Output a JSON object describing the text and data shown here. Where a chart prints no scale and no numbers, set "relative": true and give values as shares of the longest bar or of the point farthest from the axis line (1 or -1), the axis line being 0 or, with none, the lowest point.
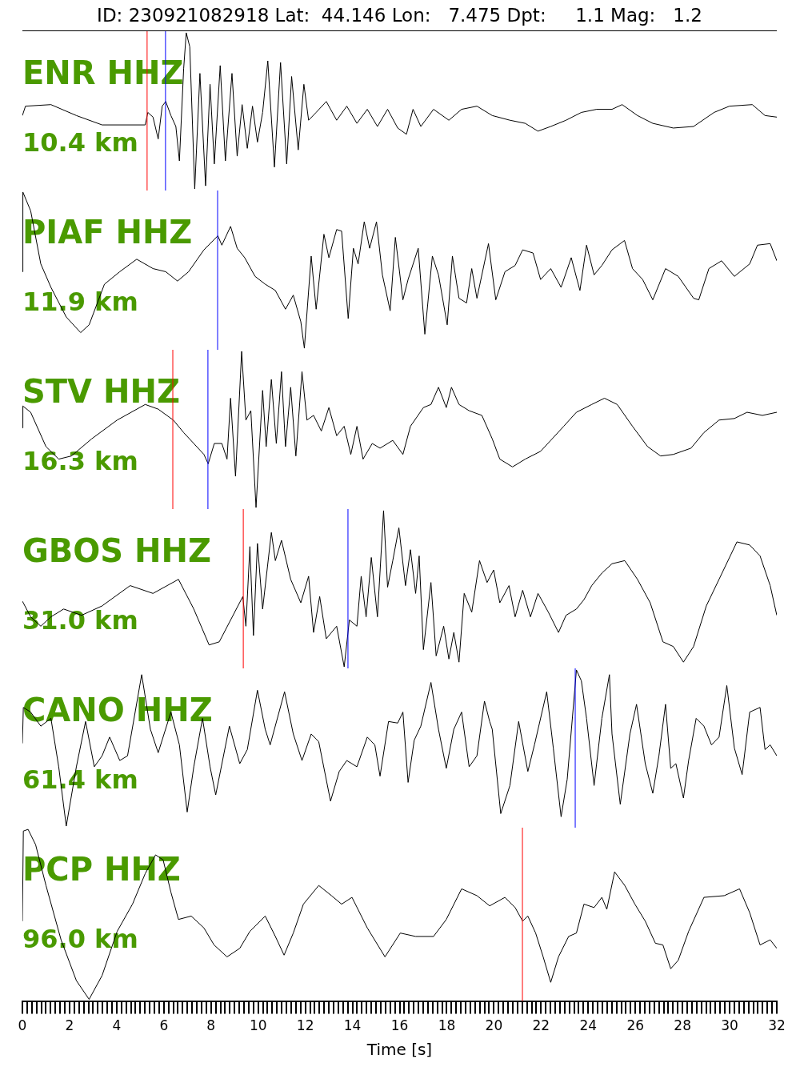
{
  "chart_data": [
    {
      "type": "line",
      "relative": true,
      "title": "ID: 230921082918 Lat:  44.146 Lon:   7.475 Dpt:     1.1 Mag:   1.2",
      "annotations": [
        "ENR HHZ",
        "10.4 km"
      ],
      "color": "#000000",
      "xlim": [
        0,
        32
      ],
      "tick_labels": false,
      "ref_lines": [
        {
          "axis": "x",
          "value": 5.29,
          "color": "#ff0000"
        },
        {
          "axis": "x",
          "value": 6.07,
          "color": "#0000ff"
        }
      ],
      "x": [
        0,
        0.13,
        1.21,
        2.29,
        3.38,
        5.21,
        5.32,
        5.54,
        5.76,
        5.93,
        6.08,
        6.3,
        6.51,
        6.66,
        6.84,
        6.95,
        7.1,
        7.31,
        7.53,
        7.77,
        7.96,
        8.14,
        8.39,
        8.61,
        8.89,
        9.11,
        9.32,
        9.54,
        9.76,
        9.97,
        10.19,
        10.41,
        10.69,
        10.95,
        11.21,
        11.42,
        11.7,
        11.94,
        12.14,
        12.46,
        12.89,
        13.33,
        13.76,
        14.19,
        14.63,
        15.06,
        15.49,
        15.92,
        16.29,
        16.57,
        16.9,
        17.44,
        18.09,
        18.63,
        19.28,
        19.93,
        20.68,
        21.33,
        21.87,
        22.41,
        23.06,
        23.71,
        24.36,
        25.01,
        25.44,
        26.09,
        26.74,
        27.61,
        28.47,
        29.34,
        29.99,
        30.96,
        31.5,
        32
      ],
      "values": [
        0.47,
        0.53,
        0.54,
        0.47,
        0.41,
        0.41,
        0.49,
        0.46,
        0.32,
        0.53,
        0.56,
        0.47,
        0.4,
        0.18,
        0.77,
        1,
        0.91,
        0,
        0.74,
        0.02,
        0.67,
        0.16,
        0.79,
        0.18,
        0.74,
        0.21,
        0.54,
        0.26,
        0.53,
        0.3,
        0.49,
        0.82,
        0.14,
        0.81,
        0.16,
        0.72,
        0.25,
        0.67,
        0.44,
        0.49,
        0.56,
        0.44,
        0.53,
        0.42,
        0.51,
        0.4,
        0.51,
        0.39,
        0.35,
        0.51,
        0.4,
        0.51,
        0.44,
        0.51,
        0.53,
        0.47,
        0.44,
        0.42,
        0.37,
        0.4,
        0.44,
        0.49,
        0.51,
        0.51,
        0.54,
        0.47,
        0.42,
        0.39,
        0.4,
        0.49,
        0.53,
        0.54,
        0.47,
        0.46
      ]
    },
    {
      "type": "line",
      "relative": true,
      "annotations": [
        "PIAF HHZ",
        "11.9 km"
      ],
      "color": "#000000",
      "xlim": [
        0,
        32
      ],
      "tick_labels": false,
      "ref_lines": [
        {
          "axis": "x",
          "value": 8.28,
          "color": "#0000ff"
        }
      ],
      "x": [
        0,
        0.02,
        0.35,
        0.78,
        1.21,
        1.86,
        2.47,
        2.83,
        3.48,
        4.13,
        4.85,
        5.54,
        6.08,
        6.58,
        7.05,
        7.7,
        8.29,
        8.46,
        8.83,
        9.11,
        9.43,
        9.87,
        10.3,
        10.73,
        11.16,
        11.49,
        11.81,
        11.96,
        12.25,
        12.46,
        12.79,
        13.0,
        13.33,
        13.54,
        13.82,
        14.04,
        14.24,
        14.5,
        14.73,
        15.02,
        15.27,
        15.6,
        15.82,
        16.14,
        16.36,
        16.79,
        17.07,
        17.39,
        17.65,
        18.02,
        18.24,
        18.52,
        18.84,
        19.06,
        19.28,
        19.77,
        20.08,
        20.47,
        20.9,
        21.22,
        21.66,
        21.98,
        22.41,
        22.85,
        23.28,
        23.65,
        23.93,
        24.25,
        24.58,
        25.01,
        25.54,
        25.88,
        26.31,
        26.74,
        27.28,
        27.82,
        28.47,
        28.69,
        29.12,
        29.66,
        30.2,
        30.85,
        31.18,
        31.72,
        32
      ],
      "values": [
        0.49,
        1,
        0.88,
        0.54,
        0.39,
        0.2,
        0.1,
        0.15,
        0.41,
        0.49,
        0.57,
        0.51,
        0.49,
        0.43,
        0.49,
        0.63,
        0.72,
        0.66,
        0.78,
        0.64,
        0.58,
        0.46,
        0.41,
        0.37,
        0.25,
        0.34,
        0.17,
        0,
        0.59,
        0.25,
        0.73,
        0.58,
        0.76,
        0.75,
        0.19,
        0.64,
        0.54,
        0.81,
        0.64,
        0.81,
        0.47,
        0.24,
        0.71,
        0.31,
        0.44,
        0.64,
        0.09,
        0.59,
        0.47,
        0.15,
        0.59,
        0.32,
        0.29,
        0.51,
        0.32,
        0.67,
        0.31,
        0.49,
        0.53,
        0.63,
        0.61,
        0.44,
        0.51,
        0.39,
        0.58,
        0.37,
        0.66,
        0.47,
        0.53,
        0.63,
        0.69,
        0.51,
        0.44,
        0.31,
        0.51,
        0.46,
        0.32,
        0.31,
        0.51,
        0.56,
        0.46,
        0.54,
        0.66,
        0.67,
        0.56
      ]
    },
    {
      "type": "line",
      "relative": true,
      "annotations": [
        "STV HHZ",
        "16.3 km"
      ],
      "color": "#000000",
      "xlim": [
        0,
        32
      ],
      "tick_labels": false,
      "ref_lines": [
        {
          "axis": "x",
          "value": 6.38,
          "color": "#ff0000"
        },
        {
          "axis": "x",
          "value": 7.87,
          "color": "#0000ff"
        }
      ],
      "x": [
        0,
        0.02,
        0.35,
        1.0,
        1.54,
        2.08,
        2.94,
        4.02,
        5.21,
        5.76,
        6.4,
        6.84,
        7.27,
        7.7,
        7.88,
        8.14,
        8.46,
        8.68,
        8.83,
        9.04,
        9.3,
        9.48,
        9.69,
        9.91,
        10.19,
        10.34,
        10.56,
        10.77,
        10.99,
        11.16,
        11.38,
        11.6,
        11.86,
        12.07,
        12.35,
        12.68,
        13.0,
        13.33,
        13.65,
        13.93,
        14.19,
        14.45,
        14.84,
        15.17,
        15.71,
        16.14,
        16.46,
        17.01,
        17.33,
        17.65,
        17.98,
        18.2,
        18.52,
        18.95,
        19.49,
        19.93,
        20.25,
        20.79,
        21.33,
        21.98,
        22.41,
        22.96,
        23.5,
        24.15,
        24.69,
        25.23,
        25.88,
        26.52,
        27.07,
        27.61,
        28.36,
        28.91,
        29.55,
        30.2,
        30.74,
        31.39,
        32
      ],
      "values": [
        0.51,
        0.65,
        0.61,
        0.39,
        0.31,
        0.33,
        0.44,
        0.56,
        0.66,
        0.63,
        0.56,
        0.48,
        0.41,
        0.34,
        0.28,
        0.41,
        0.41,
        0.31,
        0.7,
        0.2,
        1,
        0.56,
        0.62,
        0,
        0.75,
        0.39,
        0.82,
        0.41,
        0.87,
        0.39,
        0.77,
        0.33,
        0.87,
        0.56,
        0.59,
        0.49,
        0.64,
        0.46,
        0.52,
        0.34,
        0.52,
        0.31,
        0.41,
        0.38,
        0.43,
        0.34,
        0.52,
        0.64,
        0.66,
        0.77,
        0.64,
        0.77,
        0.66,
        0.62,
        0.59,
        0.44,
        0.31,
        0.26,
        0.31,
        0.36,
        0.43,
        0.52,
        0.61,
        0.66,
        0.7,
        0.66,
        0.52,
        0.39,
        0.33,
        0.34,
        0.38,
        0.48,
        0.56,
        0.57,
        0.61,
        0.59,
        0.61
      ]
    },
    {
      "type": "line",
      "relative": true,
      "annotations": [
        "GBOS HHZ",
        "31.0 km"
      ],
      "color": "#000000",
      "xlim": [
        0,
        32
      ],
      "tick_labels": false,
      "ref_lines": [
        {
          "axis": "x",
          "value": 9.37,
          "color": "#ff0000"
        },
        {
          "axis": "x",
          "value": 13.81,
          "color": "#0000ff"
        }
      ],
      "x": [
        0,
        0.35,
        0.78,
        1.21,
        1.75,
        2.51,
        3.38,
        4.57,
        5.54,
        6.62,
        7.27,
        7.92,
        8.35,
        9.35,
        9.48,
        9.65,
        9.8,
        9.97,
        10.19,
        10.56,
        10.73,
        10.99,
        11.38,
        11.81,
        12.14,
        12.35,
        12.61,
        12.89,
        13.33,
        13.65,
        13.87,
        14.19,
        14.37,
        14.58,
        14.8,
        15.06,
        15.32,
        15.49,
        15.71,
        15.97,
        16.25,
        16.46,
        16.68,
        16.83,
        17.01,
        17.33,
        17.55,
        17.87,
        18.09,
        18.3,
        18.52,
        18.74,
        19.06,
        19.39,
        19.71,
        19.99,
        20.25,
        20.64,
        20.9,
        21.22,
        21.55,
        21.87,
        22.31,
        22.74,
        23.06,
        23.5,
        23.82,
        24.15,
        24.58,
        25.01,
        25.55,
        26.09,
        26.63,
        27.17,
        27.61,
        28.04,
        28.47,
        29.01,
        29.55,
        30.31,
        30.85,
        31.29,
        31.72,
        32
      ],
      "values": [
        0.42,
        0.32,
        0.26,
        0.32,
        0.37,
        0.33,
        0.39,
        0.52,
        0.47,
        0.56,
        0.37,
        0.14,
        0.16,
        0.45,
        0.26,
        0.77,
        0.2,
        0.79,
        0.37,
        0.86,
        0.68,
        0.81,
        0.56,
        0.41,
        0.58,
        0.22,
        0.45,
        0.18,
        0.26,
        0,
        0.3,
        0.26,
        0.58,
        0.32,
        0.7,
        0.32,
        1,
        0.51,
        0.68,
        0.89,
        0.52,
        0.75,
        0.47,
        0.71,
        0.11,
        0.54,
        0.07,
        0.26,
        0.05,
        0.22,
        0.03,
        0.47,
        0.35,
        0.68,
        0.54,
        0.62,
        0.41,
        0.52,
        0.32,
        0.49,
        0.32,
        0.47,
        0.35,
        0.22,
        0.33,
        0.37,
        0.43,
        0.52,
        0.6,
        0.66,
        0.68,
        0.56,
        0.41,
        0.16,
        0.13,
        0.03,
        0.13,
        0.39,
        0.56,
        0.8,
        0.78,
        0.71,
        0.52,
        0.33
      ]
    },
    {
      "type": "line",
      "relative": true,
      "annotations": [
        "CANO HHZ",
        "61.4 km"
      ],
      "color": "#000000",
      "xlim": [
        0,
        32
      ],
      "tick_labels": false,
      "ref_lines": [
        {
          "axis": "x",
          "value": 23.45,
          "color": "#0000ff"
        }
      ],
      "x": [
        0,
        0.04,
        0.35,
        0.78,
        1.21,
        1.54,
        1.86,
        2.29,
        2.68,
        3.05,
        3.38,
        3.7,
        4.13,
        4.46,
        5.06,
        5.43,
        5.76,
        6.3,
        6.66,
        6.99,
        7.27,
        7.64,
        7.96,
        8.2,
        8.78,
        9.22,
        9.54,
        9.97,
        10.3,
        10.51,
        11.12,
        11.49,
        11.86,
        12.25,
        12.57,
        13.07,
        13.44,
        13.76,
        14.19,
        14.63,
        14.95,
        15.17,
        15.53,
        15.92,
        16.14,
        16.36,
        16.62,
        16.9,
        17.33,
        17.65,
        17.98,
        18.3,
        18.63,
        18.95,
        19.28,
        19.6,
        19.82,
        19.93,
        20.29,
        20.68,
        21.05,
        21.44,
        21.72,
        22.24,
        22.52,
        22.85,
        23.11,
        23.5,
        23.71,
        23.93,
        24.25,
        24.58,
        24.9,
        25.01,
        25.36,
        25.77,
        26.05,
        26.42,
        26.74,
        27.0,
        27.28,
        27.5,
        27.72,
        28.04,
        28.26,
        28.58,
        28.91,
        29.23,
        29.55,
        29.88,
        30.2,
        30.53,
        30.85,
        31.29,
        31.5,
        31.72,
        32
      ],
      "values": [
        0.53,
        0.76,
        0.73,
        0.64,
        0.69,
        0.38,
        0,
        0.38,
        0.67,
        0.38,
        0.45,
        0.57,
        0.42,
        0.45,
        0.97,
        0.62,
        0.47,
        0.73,
        0.52,
        0.09,
        0.38,
        0.69,
        0.38,
        0.2,
        0.64,
        0.4,
        0.49,
        0.87,
        0.62,
        0.52,
        0.86,
        0.59,
        0.42,
        0.59,
        0.54,
        0.16,
        0.35,
        0.42,
        0.38,
        0.57,
        0.52,
        0.32,
        0.67,
        0.66,
        0.73,
        0.28,
        0.55,
        0.64,
        0.92,
        0.62,
        0.37,
        0.62,
        0.73,
        0.38,
        0.45,
        0.8,
        0.67,
        0.62,
        0.08,
        0.26,
        0.67,
        0.35,
        0.52,
        0.86,
        0.5,
        0.06,
        0.3,
        1,
        0.93,
        0.69,
        0.26,
        0.69,
        0.97,
        0.59,
        0.14,
        0.59,
        0.78,
        0.4,
        0.21,
        0.45,
        0.78,
        0.37,
        0.4,
        0.18,
        0.42,
        0.69,
        0.64,
        0.52,
        0.57,
        0.9,
        0.5,
        0.33,
        0.73,
        0.76,
        0.49,
        0.52,
        0.45
      ]
    },
    {
      "type": "line",
      "relative": true,
      "annotations": [
        "PCP HHZ",
        "96.0 km"
      ],
      "color": "#000000",
      "xlim": [
        0,
        32
      ],
      "xlabel": "Time [s]",
      "ref_lines": [
        {
          "axis": "x",
          "value": 21.21,
          "color": "#ff0000"
        }
      ],
      "xticks": [
        0,
        {
          "value": 0.2,
          "label": null
        },
        {
          "value": 0.4,
          "label": null
        },
        {
          "value": 0.6,
          "label": null
        },
        {
          "value": 0.8,
          "label": null
        },
        {
          "value": 1,
          "label": null
        },
        {
          "value": 1.2,
          "label": null
        },
        {
          "value": 1.4,
          "label": null
        },
        {
          "value": 1.6,
          "label": null
        },
        {
          "value": 1.8,
          "label": null
        },
        2,
        {
          "value": 2.2,
          "label": null
        },
        {
          "value": 2.4,
          "label": null
        },
        {
          "value": 2.6,
          "label": null
        },
        {
          "value": 2.8,
          "label": null
        },
        {
          "value": 3,
          "label": null
        },
        {
          "value": 3.2,
          "label": null
        },
        {
          "value": 3.4,
          "label": null
        },
        {
          "value": 3.6,
          "label": null
        },
        {
          "value": 3.8,
          "label": null
        },
        4,
        {
          "value": 4.2,
          "label": null
        },
        {
          "value": 4.4,
          "label": null
        },
        {
          "value": 4.6,
          "label": null
        },
        {
          "value": 4.8,
          "label": null
        },
        {
          "value": 5,
          "label": null
        },
        {
          "value": 5.2,
          "label": null
        },
        {
          "value": 5.4,
          "label": null
        },
        {
          "value": 5.6,
          "label": null
        },
        {
          "value": 5.8,
          "label": null
        },
        6,
        {
          "value": 6.2,
          "label": null
        },
        {
          "value": 6.4,
          "label": null
        },
        {
          "value": 6.6,
          "label": null
        },
        {
          "value": 6.8,
          "label": null
        },
        {
          "value": 7,
          "label": null
        },
        {
          "value": 7.2,
          "label": null
        },
        {
          "value": 7.4,
          "label": null
        },
        {
          "value": 7.6,
          "label": null
        },
        {
          "value": 7.8,
          "label": null
        },
        8,
        {
          "value": 8.2,
          "label": null
        },
        {
          "value": 8.4,
          "label": null
        },
        {
          "value": 8.6,
          "label": null
        },
        {
          "value": 8.8,
          "label": null
        },
        {
          "value": 9,
          "label": null
        },
        {
          "value": 9.2,
          "label": null
        },
        {
          "value": 9.4,
          "label": null
        },
        {
          "value": 9.6,
          "label": null
        },
        {
          "value": 9.8,
          "label": null
        },
        10,
        {
          "value": 10.2,
          "label": null
        },
        {
          "value": 10.4,
          "label": null
        },
        {
          "value": 10.6,
          "label": null
        },
        {
          "value": 10.8,
          "label": null
        },
        {
          "value": 11,
          "label": null
        },
        {
          "value": 11.2,
          "label": null
        },
        {
          "value": 11.4,
          "label": null
        },
        {
          "value": 11.6,
          "label": null
        },
        {
          "value": 11.8,
          "label": null
        },
        12,
        {
          "value": 12.2,
          "label": null
        },
        {
          "value": 12.4,
          "label": null
        },
        {
          "value": 12.6,
          "label": null
        },
        {
          "value": 12.8,
          "label": null
        },
        {
          "value": 13,
          "label": null
        },
        {
          "value": 13.2,
          "label": null
        },
        {
          "value": 13.4,
          "label": null
        },
        {
          "value": 13.6,
          "label": null
        },
        {
          "value": 13.8,
          "label": null
        },
        14,
        {
          "value": 14.2,
          "label": null
        },
        {
          "value": 14.4,
          "label": null
        },
        {
          "value": 14.6,
          "label": null
        },
        {
          "value": 14.8,
          "label": null
        },
        {
          "value": 15,
          "label": null
        },
        {
          "value": 15.2,
          "label": null
        },
        {
          "value": 15.4,
          "label": null
        },
        {
          "value": 15.6,
          "label": null
        },
        {
          "value": 15.8,
          "label": null
        },
        16,
        {
          "value": 16.2,
          "label": null
        },
        {
          "value": 16.4,
          "label": null
        },
        {
          "value": 16.6,
          "label": null
        },
        {
          "value": 16.8,
          "label": null
        },
        {
          "value": 17,
          "label": null
        },
        {
          "value": 17.2,
          "label": null
        },
        {
          "value": 17.4,
          "label": null
        },
        {
          "value": 17.6,
          "label": null
        },
        {
          "value": 17.8,
          "label": null
        },
        18,
        {
          "value": 18.2,
          "label": null
        },
        {
          "value": 18.4,
          "label": null
        },
        {
          "value": 18.6,
          "label": null
        },
        {
          "value": 18.8,
          "label": null
        },
        {
          "value": 19,
          "label": null
        },
        {
          "value": 19.2,
          "label": null
        },
        {
          "value": 19.4,
          "label": null
        },
        {
          "value": 19.6,
          "label": null
        },
        {
          "value": 19.8,
          "label": null
        },
        20,
        {
          "value": 20.2,
          "label": null
        },
        {
          "value": 20.4,
          "label": null
        },
        {
          "value": 20.6,
          "label": null
        },
        {
          "value": 20.8,
          "label": null
        },
        {
          "value": 21,
          "label": null
        },
        {
          "value": 21.2,
          "label": null
        },
        {
          "value": 21.4,
          "label": null
        },
        {
          "value": 21.6,
          "label": null
        },
        {
          "value": 21.8,
          "label": null
        },
        22,
        {
          "value": 22.2,
          "label": null
        },
        {
          "value": 22.4,
          "label": null
        },
        {
          "value": 22.6,
          "label": null
        },
        {
          "value": 22.8,
          "label": null
        },
        {
          "value": 23,
          "label": null
        },
        {
          "value": 23.2,
          "label": null
        },
        {
          "value": 23.4,
          "label": null
        },
        {
          "value": 23.6,
          "label": null
        },
        {
          "value": 23.8,
          "label": null
        },
        24,
        {
          "value": 24.2,
          "label": null
        },
        {
          "value": 24.4,
          "label": null
        },
        {
          "value": 24.6,
          "label": null
        },
        {
          "value": 24.8,
          "label": null
        },
        {
          "value": 25,
          "label": null
        },
        {
          "value": 25.2,
          "label": null
        },
        {
          "value": 25.4,
          "label": null
        },
        {
          "value": 25.6,
          "label": null
        },
        {
          "value": 25.8,
          "label": null
        },
        26,
        {
          "value": 26.2,
          "label": null
        },
        {
          "value": 26.4,
          "label": null
        },
        {
          "value": 26.6,
          "label": null
        },
        {
          "value": 26.8,
          "label": null
        },
        {
          "value": 27,
          "label": null
        },
        {
          "value": 27.2,
          "label": null
        },
        {
          "value": 27.4,
          "label": null
        },
        {
          "value": 27.6,
          "label": null
        },
        {
          "value": 27.8,
          "label": null
        },
        28,
        {
          "value": 28.2,
          "label": null
        },
        {
          "value": 28.4,
          "label": null
        },
        {
          "value": 28.6,
          "label": null
        },
        {
          "value": 28.8,
          "label": null
        },
        {
          "value": 29,
          "label": null
        },
        {
          "value": 29.2,
          "label": null
        },
        {
          "value": 29.4,
          "label": null
        },
        {
          "value": 29.6,
          "label": null
        },
        {
          "value": 29.8,
          "label": null
        },
        30,
        {
          "value": 30.2,
          "label": null
        },
        {
          "value": 30.4,
          "label": null
        },
        {
          "value": 30.6,
          "label": null
        },
        {
          "value": 30.8,
          "label": null
        },
        {
          "value": 31,
          "label": null
        },
        {
          "value": 31.2,
          "label": null
        },
        {
          "value": 31.4,
          "label": null
        },
        {
          "value": 31.6,
          "label": null
        },
        {
          "value": 31.8,
          "label": null
        },
        32
      ],
      "x": [
        0,
        0.04,
        0.24,
        0.56,
        1.0,
        1.64,
        2.29,
        2.83,
        3.38,
        4.02,
        4.67,
        5.21,
        5.65,
        5.97,
        6.3,
        6.62,
        7.16,
        7.7,
        8.13,
        8.68,
        9.22,
        9.65,
        10.3,
        10.73,
        11.1,
        11.49,
        11.92,
        12.57,
        13.11,
        13.54,
        13.98,
        14.63,
        15.38,
        16.03,
        16.68,
        17.44,
        17.98,
        18.63,
        19.28,
        19.82,
        20.47,
        20.9,
        21.22,
        21.44,
        21.77,
        22.09,
        22.41,
        22.74,
        23.17,
        23.5,
        23.82,
        24.25,
        24.58,
        24.79,
        25.12,
        25.55,
        25.98,
        26.42,
        26.85,
        27.17,
        27.5,
        27.82,
        28.26,
        28.91,
        29.77,
        30.42,
        30.85,
        31.29,
        31.72,
        32
      ],
      "values": [
        0.46,
        0.99,
        1,
        0.91,
        0.67,
        0.35,
        0.11,
        0,
        0.14,
        0.4,
        0.56,
        0.74,
        0.85,
        0.82,
        0.63,
        0.47,
        0.49,
        0.42,
        0.32,
        0.25,
        0.3,
        0.4,
        0.49,
        0.37,
        0.26,
        0.39,
        0.56,
        0.67,
        0.61,
        0.56,
        0.6,
        0.42,
        0.25,
        0.39,
        0.37,
        0.37,
        0.47,
        0.65,
        0.61,
        0.55,
        0.6,
        0.54,
        0.46,
        0.49,
        0.39,
        0.25,
        0.1,
        0.25,
        0.37,
        0.39,
        0.56,
        0.54,
        0.6,
        0.53,
        0.75,
        0.67,
        0.56,
        0.46,
        0.33,
        0.32,
        0.18,
        0.23,
        0.4,
        0.6,
        0.61,
        0.65,
        0.51,
        0.32,
        0.35,
        0.3
      ]
    }
  ]
}
